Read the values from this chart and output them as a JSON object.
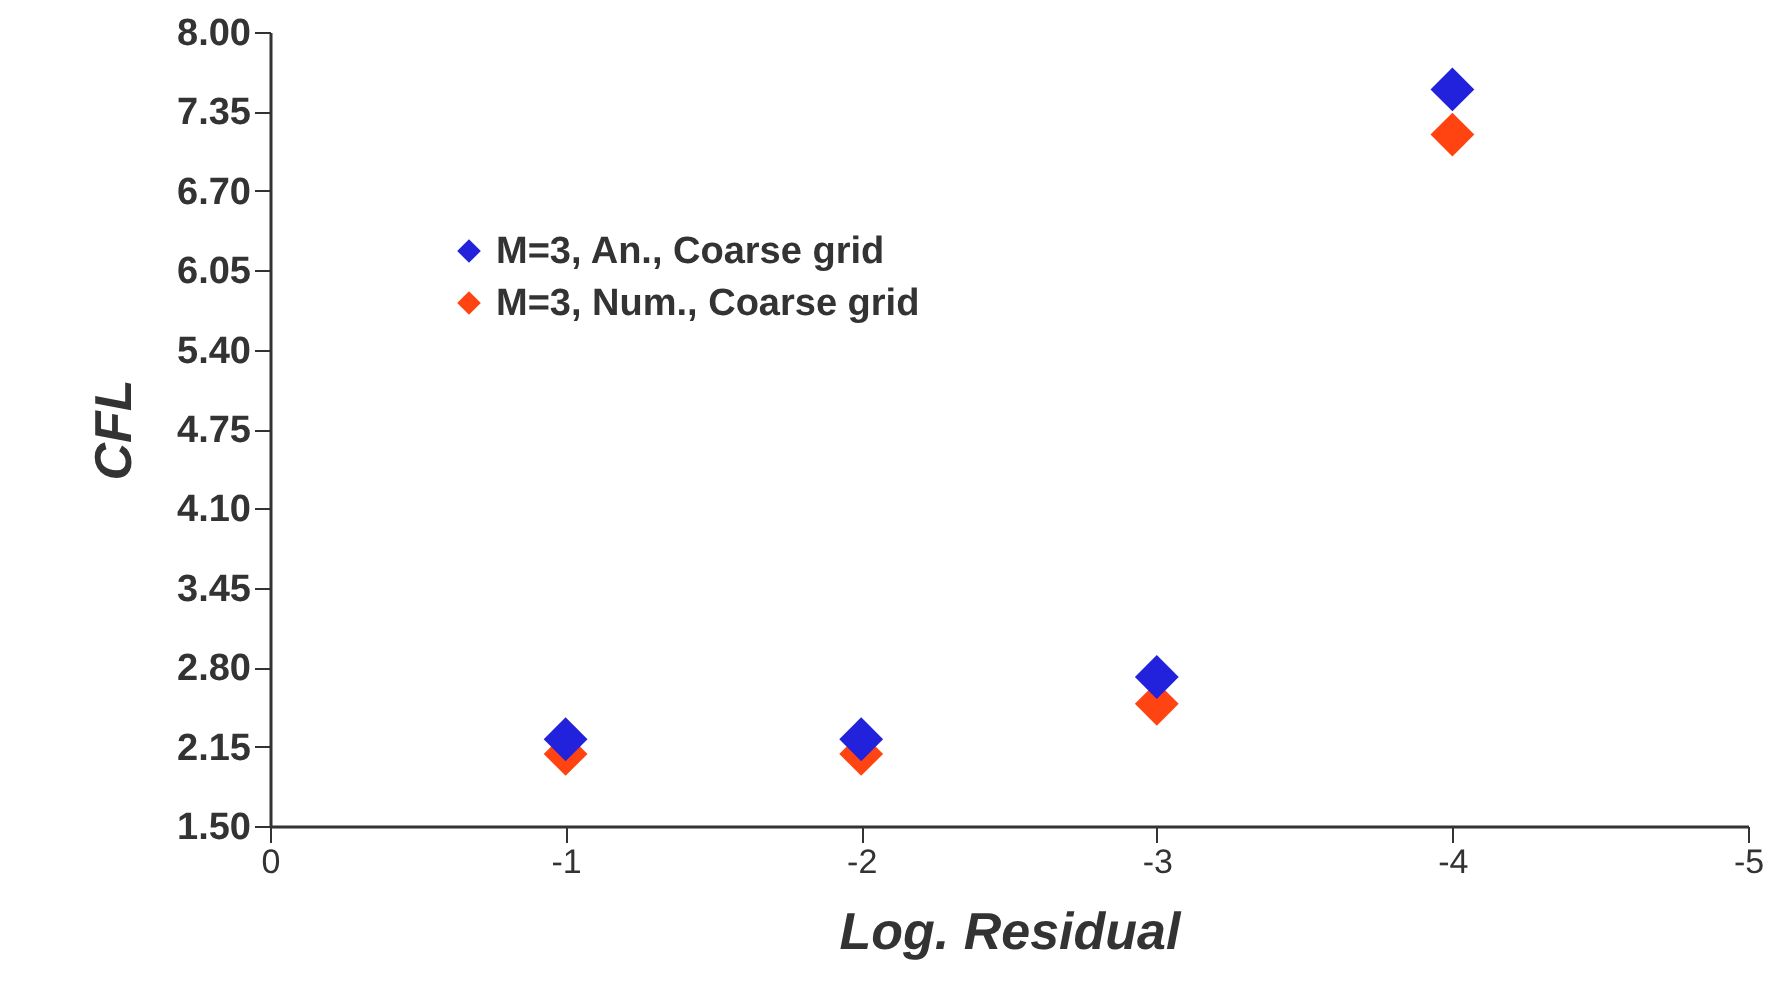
{
  "chart_data": {
    "type": "scatter",
    "xlabel": "Log. Residual",
    "ylabel": "CFL",
    "x": [
      -1,
      -2,
      -3,
      -4
    ],
    "series": [
      {
        "name": "M=3, An., Coarse grid",
        "color": "#2222dd",
        "values": [
          2.21,
          2.21,
          2.72,
          7.53
        ]
      },
      {
        "name": "M=3, Num., Coarse grid",
        "color": "#ff4411",
        "values": [
          2.09,
          2.09,
          2.5,
          7.16
        ]
      }
    ],
    "xlim": [
      0,
      -5
    ],
    "xticks": [
      0,
      -1,
      -2,
      -3,
      -4,
      -5
    ],
    "ylim": [
      1.5,
      8
    ],
    "yticks": [
      {
        "value": 1.5,
        "label": "1.50"
      },
      2.15,
      {
        "value": 2.8,
        "label": "2.80"
      },
      3.45,
      {
        "value": 4.1,
        "label": "4.10"
      },
      4.75,
      {
        "value": 5.4,
        "label": "5.40"
      },
      6.05,
      {
        "value": 6.7,
        "label": "6.70"
      },
      7.35,
      {
        "value": 8,
        "label": "8.00"
      }
    ],
    "marker": "diamond",
    "grid": false,
    "legend": "top left"
  }
}
